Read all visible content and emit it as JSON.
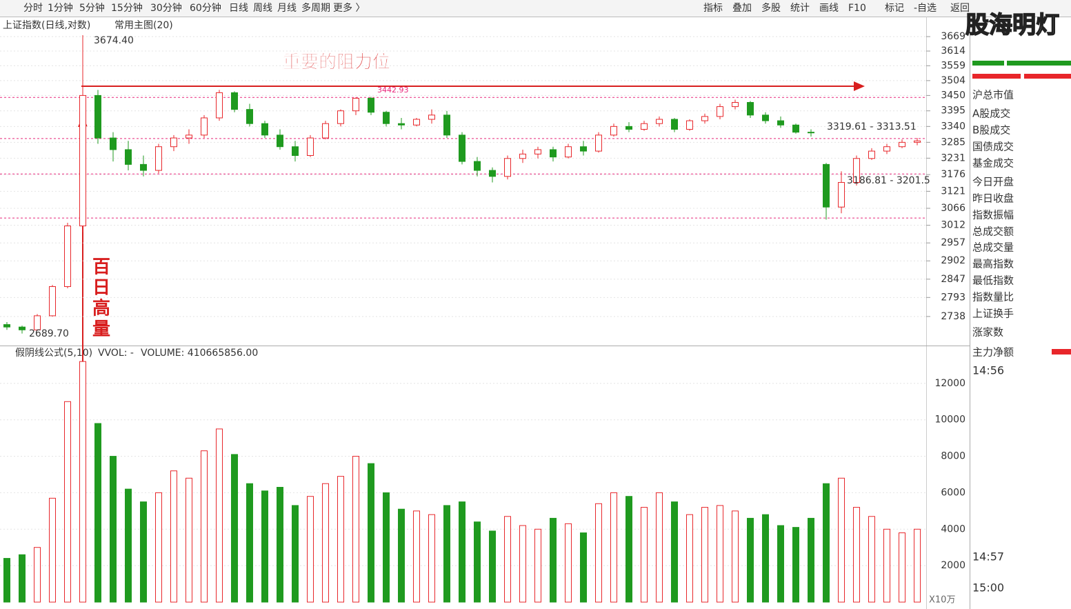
{
  "toolbar": {
    "left": [
      "分时",
      "1分钟",
      "5分钟",
      "15分钟",
      "30分钟",
      "60分钟",
      "日线",
      "周线",
      "月线",
      "多周期",
      "更多 〉"
    ],
    "left_active": "日线",
    "right": [
      "指标",
      "叠加",
      "多股",
      "统计",
      "画线",
      "F10",
      "标记",
      "-自选",
      "返回"
    ],
    "right_active": "画线"
  },
  "watermark": "股海明灯",
  "sidebar": {
    "items": [
      "沪总市值",
      "A股成交",
      "B股成交",
      "国债成交",
      "基金成交",
      "今日开盘",
      "昨日收盘",
      "指数振幅",
      "总成交额",
      "总成交量",
      "最高指数",
      "最低指数",
      "指数量比",
      "上证换手",
      "涨家数",
      "主力净额"
    ],
    "times": [
      "14:56",
      "14:57",
      "15:00"
    ]
  },
  "chart_data": {
    "type": "candlestick",
    "title": "上证指数(日线,对数)",
    "subtitle": "常用主图(20)",
    "log_scale": true,
    "up_color": "#e8262a",
    "down_color": "#1f9a1f",
    "ref_line_color": "#e8267a",
    "open": [
      2715,
      2708,
      2700,
      2740,
      2825,
      3010,
      3450,
      3300,
      3260,
      3210,
      3190,
      3270,
      3300,
      3310,
      3370,
      3460,
      3400,
      3350,
      3310,
      3270,
      3240,
      3300,
      3350,
      3395,
      3440,
      3390,
      3350,
      3345,
      3365,
      3380,
      3310,
      3220,
      3190,
      3170,
      3230,
      3245,
      3260,
      3235,
      3270,
      3255,
      3310,
      3340,
      3330,
      3350,
      3365,
      3330,
      3360,
      3375,
      3410,
      3425,
      3380,
      3360,
      3345,
      3320,
      3210,
      3070,
      3150,
      3230,
      3255,
      3270,
      3285
    ],
    "high": [
      2722,
      2712,
      2745,
      2830,
      3020,
      3674.4,
      3470,
      3320,
      3290,
      3240,
      3280,
      3310,
      3330,
      3380,
      3470,
      3465,
      3420,
      3360,
      3330,
      3290,
      3310,
      3360,
      3400,
      3442.93,
      3445,
      3395,
      3370,
      3370,
      3400,
      3395,
      3320,
      3235,
      3200,
      3240,
      3260,
      3270,
      3270,
      3280,
      3290,
      3320,
      3350,
      3355,
      3360,
      3375,
      3370,
      3365,
      3385,
      3420,
      3435,
      3430,
      3390,
      3375,
      3350,
      3330,
      3215,
      3186.81,
      3240,
      3265,
      3280,
      3295,
      3300
    ],
    "low": [
      2700,
      2689.7,
      2698,
      2738,
      2820,
      2990,
      3280,
      3220,
      3190,
      3170,
      3180,
      3255,
      3280,
      3300,
      3360,
      3390,
      3340,
      3300,
      3260,
      3220,
      3235,
      3295,
      3340,
      3380,
      3380,
      3340,
      3330,
      3340,
      3350,
      3300,
      3210,
      3170,
      3150,
      3160,
      3215,
      3230,
      3220,
      3230,
      3240,
      3250,
      3305,
      3320,
      3325,
      3340,
      3320,
      3325,
      3350,
      3365,
      3400,
      3370,
      3350,
      3335,
      3315,
      3305,
      3030,
      3050,
      3140,
      3225,
      3245,
      3265,
      3275
    ],
    "close": [
      2708,
      2700,
      2740,
      2825,
      3010,
      3450,
      3300,
      3260,
      3210,
      3190,
      3270,
      3300,
      3310,
      3370,
      3460,
      3400,
      3350,
      3310,
      3270,
      3240,
      3300,
      3350,
      3395,
      3440,
      3390,
      3350,
      3345,
      3365,
      3380,
      3310,
      3220,
      3190,
      3170,
      3230,
      3245,
      3260,
      3235,
      3270,
      3255,
      3310,
      3340,
      3330,
      3350,
      3365,
      3330,
      3360,
      3375,
      3410,
      3425,
      3380,
      3360,
      3345,
      3320,
      3319.61,
      3070,
      3150,
      3230,
      3255,
      3270,
      3285,
      3290
    ],
    "ylim": [
      2658,
      3736
    ],
    "yticks": [
      3669,
      3614,
      3559,
      3504,
      3450,
      3395,
      3340,
      3285,
      3231,
      3176,
      3121,
      3066,
      3012,
      2957,
      2902,
      2847,
      2793,
      2738
    ],
    "ref_lines": [
      3442.93,
      3298,
      3178,
      3035
    ],
    "annotations": [
      "3674.40",
      "2689.70",
      "3442.93",
      "3319.61 - 3313.51",
      "3186.81 - 3201.5",
      "重要的阻力位",
      "百日高量"
    ],
    "volume_title": "假阴线公式(5,10)",
    "volume_indicator": "VVOL: -",
    "volume_label": "VOLUME: 410665856.00",
    "volume_unit": "X10万",
    "volume": [
      2400,
      2600,
      3000,
      5700,
      11000,
      13200,
      9800,
      8000,
      6200,
      5500,
      6000,
      7200,
      6800,
      8300,
      9500,
      8100,
      6500,
      6100,
      6300,
      5300,
      5800,
      6500,
      6900,
      8000,
      7600,
      6000,
      5100,
      5000,
      4800,
      5300,
      5500,
      4400,
      3900,
      4700,
      4200,
      4000,
      4600,
      4300,
      3800,
      5400,
      6000,
      5800,
      5200,
      6000,
      5500,
      4800,
      5200,
      5300,
      5000,
      4600,
      4800,
      4200,
      4100,
      4600,
      6500,
      6800,
      5200,
      4700,
      4000,
      3800,
      4000
    ],
    "vlim": [
      0,
      14000
    ],
    "vticks": [
      2000,
      4000,
      6000,
      8000,
      10000,
      12000
    ]
  }
}
